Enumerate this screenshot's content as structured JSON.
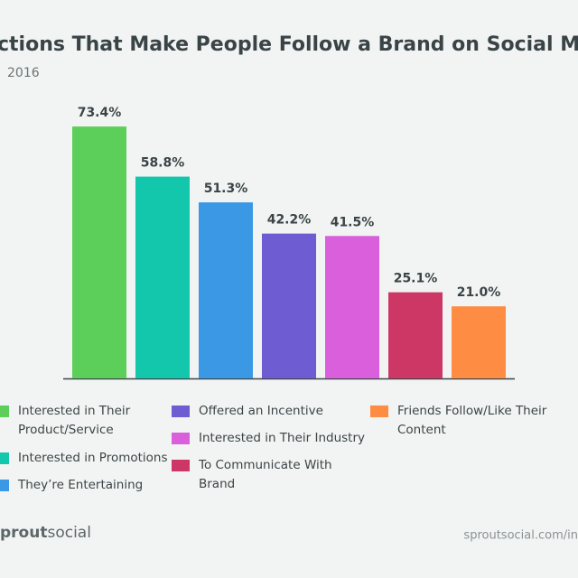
{
  "chart_data": {
    "type": "bar",
    "title": "ctions That Make People Follow a Brand on Social Media",
    "subtitle": "2016",
    "categories": [
      "Interested in Their Product/Service",
      "Interested in Promotions",
      "They’re Entertaining",
      "Offered an Incentive",
      "Interested in Their Industry",
      "To Communicate With Brand",
      "Friends Follow/Like Their Content"
    ],
    "values": [
      73.4,
      58.8,
      51.3,
      42.2,
      41.5,
      25.1,
      21.0
    ],
    "value_labels": [
      "73.4%",
      "58.8%",
      "51.3%",
      "42.2%",
      "41.5%",
      "25.1%",
      "21.0%"
    ],
    "colors": [
      "#5ccf5a",
      "#13c7ad",
      "#3a98e4",
      "#6e5cd2",
      "#d95fdc",
      "#cd3766",
      "#ff8c43"
    ],
    "logo": {
      "bold": "prout",
      "light": "social"
    },
    "source": "sproutsocial.com/in"
  }
}
